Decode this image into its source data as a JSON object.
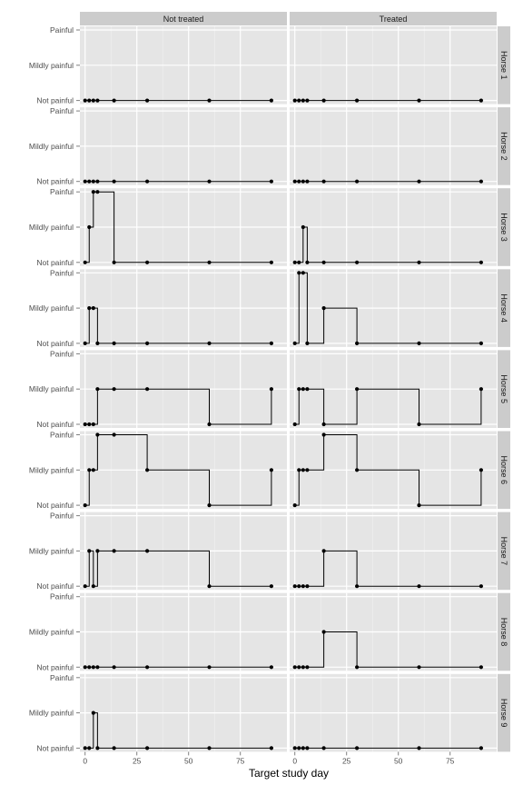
{
  "chart_data": {
    "type": "line",
    "step": "hv",
    "xlabel": "Target study day",
    "ylabel": "",
    "xlim": [
      -2.5,
      97.5
    ],
    "xticks": [
      0,
      25,
      50,
      75
    ],
    "y_levels": [
      "Not painful",
      "Mildly painful",
      "Painful"
    ],
    "grid": true,
    "background": "#e5e5e5",
    "strip_background": "#cccccc",
    "columns": [
      "Not treated",
      "Treated"
    ],
    "rows": [
      "Horse 1",
      "Horse 2",
      "Horse 3",
      "Horse 4",
      "Horse 5",
      "Horse 6",
      "Horse 7",
      "Horse 8",
      "Horse 9"
    ],
    "days": [
      0,
      2,
      4,
      6,
      14,
      30,
      60,
      90
    ],
    "panels": [
      {
        "horse": "Horse 1",
        "group": "Not treated",
        "days": [
          0,
          2,
          4,
          6,
          14,
          30,
          60,
          90
        ],
        "values": [
          0,
          0,
          0,
          0,
          0,
          0,
          0,
          0
        ]
      },
      {
        "horse": "Horse 1",
        "group": "Treated",
        "days": [
          0,
          2,
          4,
          6,
          14,
          30,
          60,
          90
        ],
        "values": [
          0,
          0,
          0,
          0,
          0,
          0,
          0,
          0
        ]
      },
      {
        "horse": "Horse 2",
        "group": "Not treated",
        "days": [
          0,
          2,
          4,
          6,
          14,
          30,
          60,
          90
        ],
        "values": [
          0,
          0,
          0,
          0,
          0,
          0,
          0,
          0
        ]
      },
      {
        "horse": "Horse 2",
        "group": "Treated",
        "days": [
          0,
          2,
          4,
          6,
          14,
          30,
          60,
          90
        ],
        "values": [
          0,
          0,
          0,
          0,
          0,
          0,
          0,
          0
        ]
      },
      {
        "horse": "Horse 3",
        "group": "Not treated",
        "days": [
          0,
          2,
          4,
          6,
          14,
          30,
          60,
          90
        ],
        "values": [
          0,
          1,
          2,
          2,
          0,
          0,
          0,
          0
        ]
      },
      {
        "horse": "Horse 3",
        "group": "Treated",
        "days": [
          0,
          2,
          4,
          6,
          14,
          30,
          60,
          90
        ],
        "values": [
          0,
          0,
          1,
          0,
          0,
          0,
          0,
          0
        ]
      },
      {
        "horse": "Horse 4",
        "group": "Not treated",
        "days": [
          0,
          2,
          4,
          6,
          14,
          30,
          60,
          90
        ],
        "values": [
          0,
          1,
          1,
          0,
          0,
          0,
          0,
          0
        ]
      },
      {
        "horse": "Horse 4",
        "group": "Treated",
        "days": [
          0,
          2,
          4,
          6,
          14,
          30,
          60,
          90
        ],
        "values": [
          0,
          2,
          2,
          0,
          1,
          0,
          0,
          0
        ]
      },
      {
        "horse": "Horse 5",
        "group": "Not treated",
        "days": [
          0,
          2,
          4,
          6,
          14,
          30,
          60,
          90
        ],
        "values": [
          0,
          0,
          0,
          1,
          1,
          1,
          0,
          1
        ]
      },
      {
        "horse": "Horse 5",
        "group": "Treated",
        "days": [
          0,
          2,
          4,
          6,
          14,
          30,
          60,
          90
        ],
        "values": [
          0,
          1,
          1,
          1,
          0,
          1,
          0,
          1
        ]
      },
      {
        "horse": "Horse 6",
        "group": "Not treated",
        "days": [
          0,
          2,
          4,
          6,
          14,
          30,
          60,
          90
        ],
        "values": [
          0,
          1,
          1,
          2,
          2,
          1,
          0,
          1
        ]
      },
      {
        "horse": "Horse 6",
        "group": "Treated",
        "days": [
          0,
          2,
          4,
          6,
          14,
          30,
          60,
          90
        ],
        "values": [
          0,
          1,
          1,
          1,
          2,
          1,
          0,
          1
        ]
      },
      {
        "horse": "Horse 7",
        "group": "Not treated",
        "days": [
          0,
          2,
          4,
          6,
          14,
          30,
          60,
          90
        ],
        "values": [
          0,
          1,
          0,
          1,
          1,
          1,
          0,
          0
        ]
      },
      {
        "horse": "Horse 7",
        "group": "Treated",
        "days": [
          0,
          2,
          4,
          6,
          14,
          30,
          60,
          90
        ],
        "values": [
          0,
          0,
          0,
          0,
          1,
          0,
          0,
          0
        ]
      },
      {
        "horse": "Horse 8",
        "group": "Not treated",
        "days": [
          0,
          2,
          4,
          6,
          14,
          30,
          60,
          90
        ],
        "values": [
          0,
          0,
          0,
          0,
          0,
          0,
          0,
          0
        ]
      },
      {
        "horse": "Horse 8",
        "group": "Treated",
        "days": [
          0,
          2,
          4,
          6,
          14,
          30,
          60,
          90
        ],
        "values": [
          0,
          0,
          0,
          0,
          1,
          0,
          0,
          0
        ]
      },
      {
        "horse": "Horse 9",
        "group": "Not treated",
        "days": [
          0,
          2,
          4,
          6,
          14,
          30,
          60,
          90
        ],
        "values": [
          0,
          0,
          1,
          0,
          0,
          0,
          0,
          0
        ]
      },
      {
        "horse": "Horse 9",
        "group": "Treated",
        "days": [
          0,
          2,
          4,
          6,
          14,
          30,
          60,
          90
        ],
        "values": [
          0,
          0,
          0,
          0,
          0,
          0,
          0,
          0
        ]
      }
    ]
  }
}
